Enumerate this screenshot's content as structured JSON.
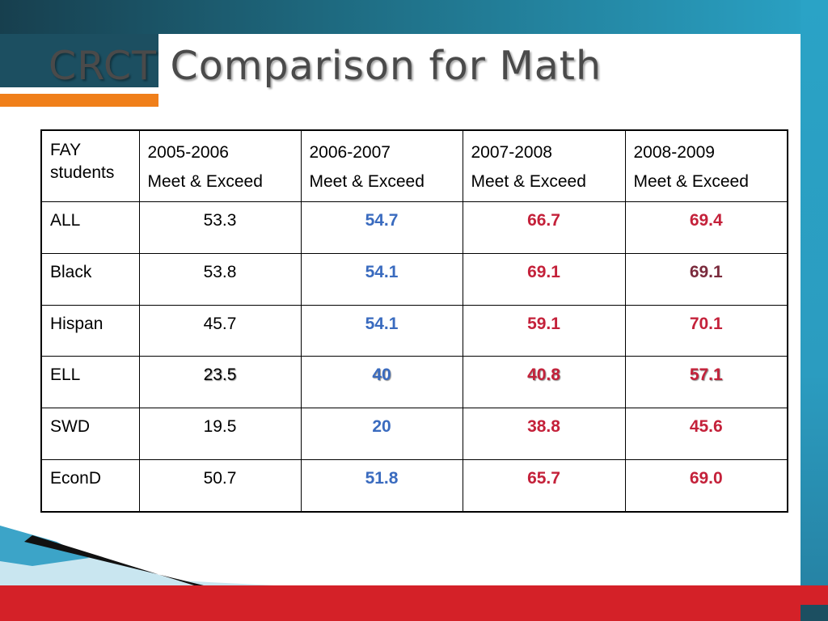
{
  "slide": {
    "title": "CRCT Comparison for Math"
  },
  "table": {
    "header": {
      "first": [
        "FAY",
        "students"
      ],
      "columns": [
        {
          "year": "2005-2006",
          "label": "Meet & Exceed"
        },
        {
          "year": "2006-2007",
          "label": "Meet & Exceed"
        },
        {
          "year": "2007-2008",
          "label": "Meet & Exceed"
        },
        {
          "year": "2008-2009",
          "label": "Meet & Exceed"
        }
      ]
    },
    "rows": [
      {
        "group": "ALL",
        "values": [
          "53.3",
          "54.7",
          "66.7",
          "69.4"
        ]
      },
      {
        "group": "Black",
        "values": [
          "53.8",
          "54.1",
          "69.1",
          "69.1"
        ]
      },
      {
        "group": "Hispan",
        "values": [
          "45.7",
          "54.1",
          "59.1",
          "70.1"
        ]
      },
      {
        "group": "ELL",
        "values": [
          "23.5",
          "40",
          "40.8",
          "57.1"
        ]
      },
      {
        "group": "SWD",
        "values": [
          "19.5",
          "20",
          "38.8",
          "45.6"
        ]
      },
      {
        "group": "EconD",
        "values": [
          "50.7",
          "51.8",
          "65.7",
          "69.0"
        ]
      }
    ]
  },
  "colors": {
    "header_band": "#1f6f86",
    "accent_orange": "#f07f1a",
    "footer_red": "#d42128",
    "value_blue": "#3a6bbf",
    "value_red": "#c4213a",
    "value_maroon": "#7a2a3c"
  }
}
